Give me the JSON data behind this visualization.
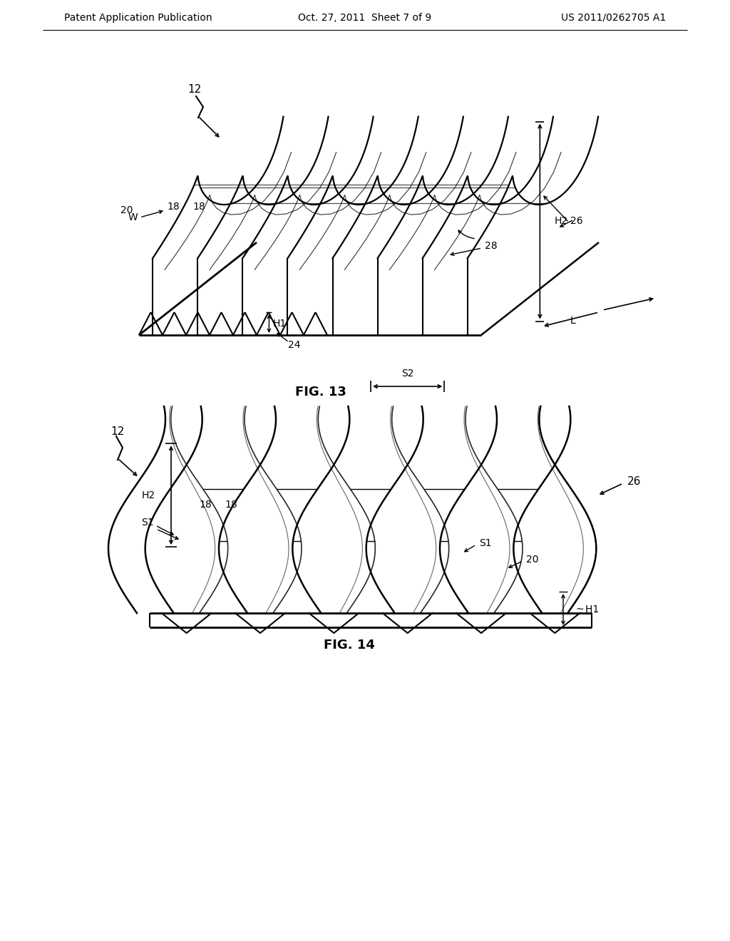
{
  "background_color": "#ffffff",
  "line_color": "#000000",
  "header_left": "Patent Application Publication",
  "header_center": "Oct. 27, 2011  Sheet 7 of 9",
  "header_right": "US 2011/0262705 A1",
  "fig13_label": "FIG. 13",
  "fig14_label": "FIG. 14",
  "font_size_header": 10,
  "font_size_fig": 13,
  "font_size_annot": 10
}
